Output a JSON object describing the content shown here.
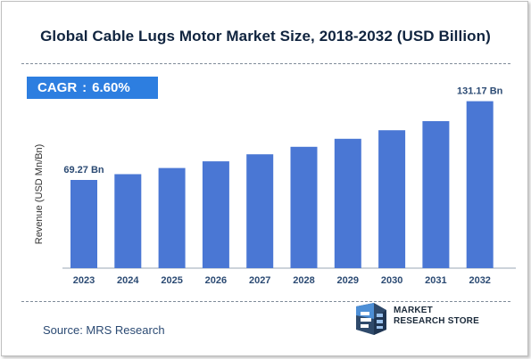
{
  "title": "Global Cable Lugs Motor Market Size, 2018-2032 (USD Billion)",
  "cagr": {
    "label": "CAGR",
    "separator": ":",
    "value": "6.60%"
  },
  "source": "Source: MRS Research",
  "logo": {
    "line1": "MARKET",
    "line2": "RESEARCH STORE"
  },
  "colors": {
    "bar": "#4a77d4",
    "cagr_bg": "#2d7ee0",
    "title": "#10243f",
    "value_label": "#2b4a73"
  },
  "chart_data": {
    "type": "bar",
    "title": "Global Cable Lugs Motor Market Size, 2018-2032 (USD Billion)",
    "xlabel": "",
    "ylabel": "Revenue (USD Mn/Bn)",
    "categories": [
      "2023",
      "2024",
      "2025",
      "2026",
      "2027",
      "2028",
      "2029",
      "2030",
      "2031",
      "2032"
    ],
    "series": [
      {
        "values": [
          69.27,
          73.84,
          78.71,
          83.91,
          89.45,
          95.35,
          101.64,
          108.35,
          115.5,
          131.17
        ]
      }
    ],
    "data_labels": [
      {
        "index": 0,
        "text": "69.27 Bn"
      },
      {
        "index": 9,
        "text": "131.17 Bn"
      }
    ],
    "ylim": [
      0,
      140
    ],
    "grid": false,
    "legend": "none"
  }
}
